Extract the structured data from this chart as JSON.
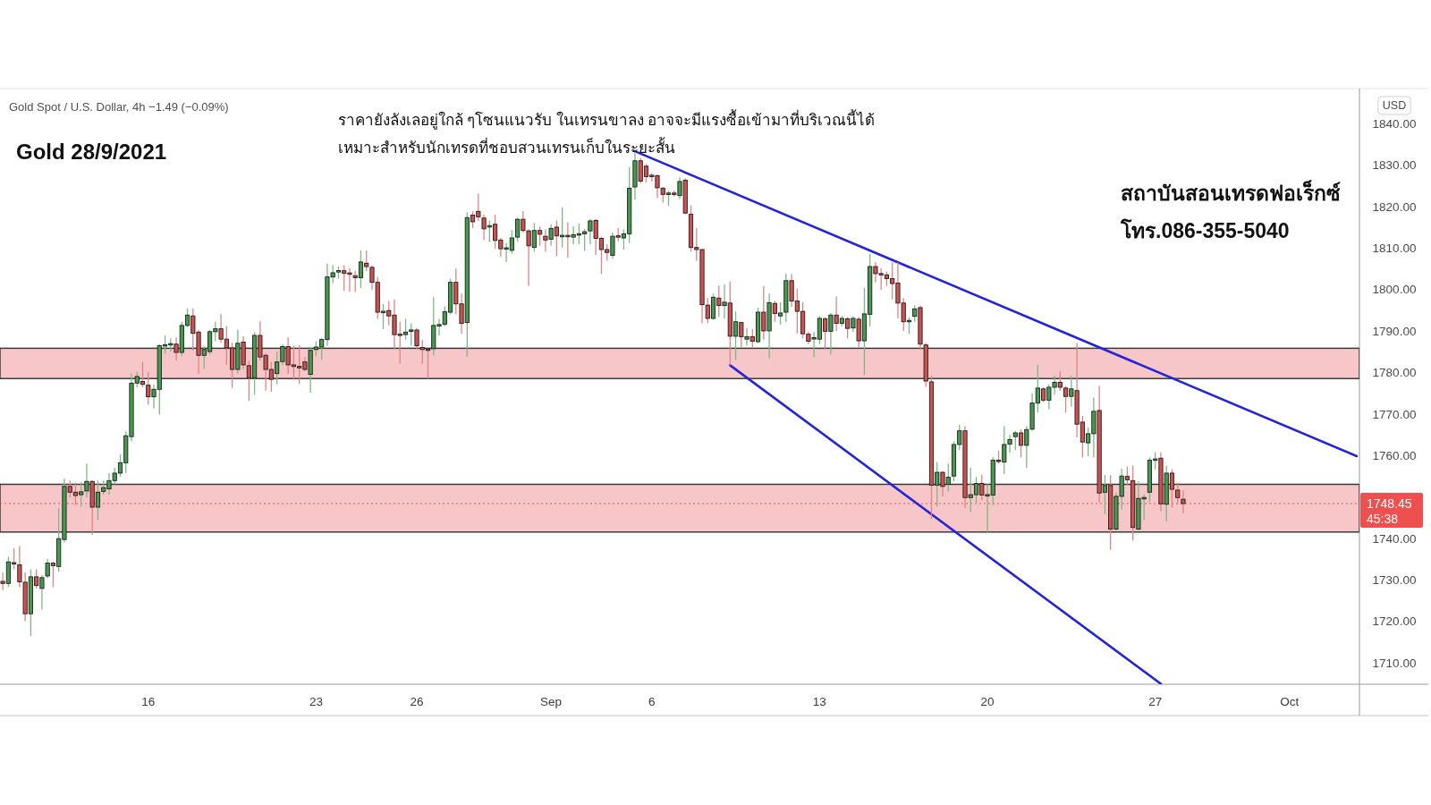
{
  "chart_data": {
    "type": "candlestick",
    "title": "Gold 28/9/2021",
    "subtitle": "Gold Spot / U.S. Dollar, 4h −1.49 (−0.09%)",
    "ylabel": "USD",
    "annotations": [
      "ราคายังลังเลอยู่ใกล้ ๆโซนแนวรับ ในเทรนขาลง อาจจะมีแรงซื้อเข้ามาที่บริเวณนี้ได้",
      "เหมาะสำหรับนักเทรดที่ชอบสวนเทรนเก็บในระยะสั้น",
      "สถาบันสอนเทรดฟอเร็กซ์",
      "โทร.086-355-5040",
      "45:38"
    ],
    "categories": [
      null,
      null,
      null,
      null,
      null,
      null,
      null,
      null,
      null,
      null,
      null,
      null,
      null,
      null,
      null,
      null,
      null,
      null,
      null,
      null,
      null,
      null,
      null,
      null,
      null,
      null,
      "16",
      null,
      null,
      null,
      null,
      null,
      null,
      null,
      null,
      null,
      null,
      null,
      null,
      null,
      null,
      null,
      null,
      null,
      null,
      null,
      null,
      null,
      null,
      null,
      null,
      null,
      null,
      null,
      null,
      null,
      "23",
      null,
      null,
      null,
      null,
      null,
      null,
      null,
      null,
      null,
      null,
      null,
      null,
      null,
      null,
      null,
      null,
      null,
      "26",
      null,
      null,
      null,
      null,
      null,
      null,
      null,
      null,
      null,
      null,
      null,
      null,
      null,
      null,
      null,
      null,
      null,
      null,
      null,
      null,
      null,
      null,
      null,
      "Sep",
      null,
      null,
      null,
      null,
      null,
      null,
      null,
      null,
      null,
      null,
      null,
      null,
      null,
      null,
      null,
      null,
      null,
      "6",
      null,
      null,
      null,
      null,
      null,
      null,
      null,
      null,
      null,
      null,
      null,
      null,
      null,
      null,
      null,
      null,
      null,
      null,
      null,
      null,
      null,
      null,
      null,
      null,
      null,
      null,
      null,
      null,
      null,
      "13",
      null,
      null,
      null,
      null,
      null,
      null,
      null,
      null,
      null,
      null,
      null,
      null,
      null,
      null,
      null,
      null,
      null,
      null,
      null,
      null,
      null,
      null,
      null,
      null,
      null,
      null,
      null,
      null,
      null,
      "20",
      null,
      null,
      null,
      null,
      null,
      null,
      null,
      null,
      null,
      null,
      null,
      null,
      null,
      null,
      null,
      null,
      null,
      null,
      null,
      null,
      null,
      null,
      null,
      null,
      null,
      null,
      null,
      null,
      null,
      "27",
      null,
      null,
      null,
      null,
      null,
      null,
      null,
      null,
      null,
      null,
      null,
      null,
      null,
      null,
      null,
      null,
      null,
      null,
      null,
      null,
      null,
      null,
      null,
      "Oct",
      null,
      null,
      null,
      null,
      null,
      null,
      null,
      null,
      null,
      null,
      null,
      null
    ],
    "ylim": [
      1704.9,
      1848.3
    ],
    "yticks": [
      {
        "value": 1710,
        "label": "1710.00"
      },
      {
        "value": 1720,
        "label": "1720.00"
      },
      {
        "value": 1730,
        "label": "1730.00"
      },
      {
        "value": 1740,
        "label": "1740.00"
      },
      {
        "value": 1760,
        "label": "1760.00"
      },
      {
        "value": 1770,
        "label": "1770.00"
      },
      {
        "value": 1780,
        "label": "1780.00"
      },
      {
        "value": 1790,
        "label": "1790.00"
      },
      {
        "value": 1800,
        "label": "1800.00"
      },
      {
        "value": 1810,
        "label": "1810.00"
      },
      {
        "value": 1820,
        "label": "1820.00"
      },
      {
        "value": 1830,
        "label": "1830.00"
      },
      {
        "value": 1840,
        "label": "1840.00"
      }
    ],
    "bands": [
      {
        "axis": "y",
        "from": 1778.6,
        "to": 1785.9,
        "color": "#f6c6c8"
      },
      {
        "axis": "y",
        "from": 1741.6,
        "to": 1753.1,
        "color": "#f6c6c8"
      }
    ],
    "ref_lines": [
      {
        "axis": "y",
        "value": 1748.45,
        "label": "1748.45",
        "color": "#ee4f4f",
        "line_style": "dotted"
      }
    ],
    "series": [
      {
        "type": "line",
        "color": "#2424d8",
        "values": [
          null,
          null,
          null,
          null,
          null,
          null,
          null,
          null,
          null,
          null,
          null,
          null,
          null,
          null,
          null,
          null,
          null,
          null,
          null,
          null,
          null,
          null,
          null,
          null,
          null,
          null,
          null,
          null,
          null,
          null,
          null,
          null,
          null,
          null,
          null,
          null,
          null,
          null,
          null,
          null,
          null,
          null,
          null,
          null,
          null,
          null,
          null,
          null,
          null,
          null,
          null,
          null,
          null,
          null,
          null,
          null,
          null,
          null,
          null,
          null,
          null,
          null,
          null,
          null,
          null,
          null,
          null,
          null,
          null,
          null,
          null,
          null,
          null,
          null,
          null,
          null,
          null,
          null,
          null,
          null,
          null,
          null,
          null,
          null,
          null,
          null,
          null,
          null,
          null,
          null,
          null,
          null,
          null,
          null,
          null,
          null,
          null,
          null,
          null,
          null,
          null,
          null,
          null,
          null,
          null,
          null,
          null,
          null,
          null,
          null,
          null,
          null,
          null,
          1833.4,
          null,
          null,
          null,
          null,
          null,
          null,
          null,
          null,
          null,
          null,
          null,
          null,
          null,
          null,
          null,
          null,
          null,
          null,
          null,
          null,
          null,
          null,
          null,
          null,
          null,
          null,
          null,
          null,
          null,
          null,
          null,
          null,
          null,
          null,
          null,
          null,
          null,
          null,
          null,
          null,
          null,
          null,
          null,
          null,
          null,
          null,
          null,
          null,
          null,
          null,
          null,
          null,
          null,
          null,
          null,
          null,
          null,
          null,
          null,
          null,
          null,
          null,
          null,
          null,
          null,
          null,
          null,
          null,
          null,
          null,
          null,
          null,
          null,
          null,
          null,
          null,
          null,
          null,
          null,
          null,
          null,
          null,
          null,
          null,
          null,
          null,
          null,
          null,
          null,
          null,
          null,
          null,
          null,
          null,
          null,
          null,
          null,
          null,
          null,
          null,
          null,
          null,
          null,
          null,
          null,
          null,
          null,
          null,
          null,
          null,
          null,
          null,
          null,
          null,
          null,
          null,
          null,
          null,
          null,
          null,
          null,
          null,
          null,
          null,
          null,
          null,
          null,
          null,
          1759.9
        ]
      },
      {
        "type": "line",
        "color": "#2424d8",
        "values": [
          null,
          null,
          null,
          null,
          null,
          null,
          null,
          null,
          null,
          null,
          null,
          null,
          null,
          null,
          null,
          null,
          null,
          null,
          null,
          null,
          null,
          null,
          null,
          null,
          null,
          null,
          null,
          null,
          null,
          null,
          null,
          null,
          null,
          null,
          null,
          null,
          null,
          null,
          null,
          null,
          null,
          null,
          null,
          null,
          null,
          null,
          null,
          null,
          null,
          null,
          null,
          null,
          null,
          null,
          null,
          null,
          null,
          null,
          null,
          null,
          null,
          null,
          null,
          null,
          null,
          null,
          null,
          null,
          null,
          null,
          null,
          null,
          null,
          null,
          null,
          null,
          null,
          null,
          null,
          null,
          null,
          null,
          null,
          null,
          null,
          null,
          null,
          null,
          null,
          null,
          null,
          null,
          null,
          null,
          null,
          null,
          null,
          null,
          null,
          null,
          null,
          null,
          null,
          null,
          null,
          null,
          null,
          null,
          null,
          null,
          null,
          null,
          null,
          null,
          null,
          null,
          null,
          null,
          null,
          null,
          null,
          null,
          null,
          null,
          null,
          null,
          null,
          null,
          null,
          null,
          1781.8,
          null,
          null,
          null,
          null,
          null,
          null,
          null,
          null,
          null,
          null,
          null,
          null,
          null,
          null,
          null,
          null,
          null,
          null,
          null,
          null,
          null,
          null,
          null,
          null,
          null,
          null,
          null,
          null,
          null,
          null,
          null,
          null,
          null,
          null,
          null,
          null,
          null,
          null,
          null,
          null,
          null,
          null,
          null,
          null,
          null,
          null,
          null,
          null,
          null,
          null,
          null,
          null,
          null,
          null,
          null,
          null,
          null,
          null,
          null,
          null,
          null,
          null,
          null,
          null,
          null,
          null,
          null,
          null,
          null,
          null,
          null,
          null,
          null,
          null,
          null,
          null,
          1705.0,
          null,
          null,
          null,
          null,
          null,
          null,
          null,
          null,
          null,
          null,
          null,
          null,
          null,
          null,
          null,
          null,
          null,
          null,
          null,
          null,
          null,
          null,
          null,
          null,
          null,
          null,
          null,
          null,
          null,
          null,
          null,
          null,
          null,
          null,
          null
        ]
      },
      {
        "color": "#459a4e",
        "ohlc": [
          null,
          [
            1729.2,
            1735.6,
            1728.3,
            1734.4
          ],
          null,
          null,
          null,
          [
            1721.9,
            1732.6,
            1716.5,
            1730.8
          ],
          null,
          [
            1728.0,
            1731.2,
            1722.9,
            1730.6
          ],
          [
            1731.0,
            1735.1,
            1730.5,
            1734.1
          ],
          null,
          [
            1733.3,
            1747.4,
            1732.0,
            1740.0
          ],
          [
            1739.8,
            1754.5,
            1739.1,
            1752.6
          ],
          null,
          null,
          [
            1750.6,
            1753.6,
            1747.7,
            1751.3
          ],
          [
            1751.5,
            1758.1,
            1749.9,
            1753.8
          ],
          null,
          [
            1747.6,
            1754.0,
            1744.5,
            1751.2
          ],
          [
            1751.4,
            1754.0,
            1750.6,
            1752.3
          ],
          [
            1752.0,
            1755.8,
            1750.6,
            1754.0
          ],
          [
            1754.0,
            1757.1,
            1753.1,
            1755.8
          ],
          [
            1755.8,
            1760.3,
            1754.9,
            1758.3
          ],
          [
            1758.3,
            1765.8,
            1755.8,
            1764.8
          ],
          [
            1764.6,
            1779.8,
            1763.5,
            1777.5
          ],
          [
            1777.5,
            1780.2,
            1776.5,
            1779.1
          ],
          null,
          null,
          [
            1774.2,
            1777.2,
            1771.4,
            1776.0
          ],
          [
            1776.0,
            1786.9,
            1769.9,
            1786.5
          ],
          [
            1786.5,
            1789.0,
            1784.5,
            1786.7
          ],
          [
            1786.7,
            1788.3,
            1785.1,
            1787.0
          ],
          null,
          [
            1784.9,
            1792.3,
            1784.0,
            1791.4
          ],
          [
            1791.4,
            1795.5,
            1791.0,
            1793.9
          ],
          null,
          null,
          [
            1784.2,
            1786.5,
            1780.9,
            1785.6
          ],
          [
            1785.1,
            1790.3,
            1784.4,
            1789.9
          ],
          [
            1789.9,
            1792.3,
            1787.6,
            1790.6
          ],
          null,
          null,
          null,
          [
            1780.8,
            1790.4,
            1779.7,
            1787.1
          ],
          null,
          null,
          [
            1778.8,
            1789.8,
            1774.7,
            1789.0
          ],
          null,
          null,
          null,
          [
            1779.8,
            1785.1,
            1777.2,
            1782.6
          ],
          [
            1782.7,
            1786.9,
            1781.9,
            1786.3
          ],
          null,
          null,
          null,
          null,
          [
            1779.6,
            1786.2,
            1775.2,
            1785.4
          ],
          [
            1785.6,
            1787.6,
            1784.0,
            1786.2
          ],
          [
            1786.2,
            1788.3,
            1783.1,
            1788.0
          ],
          [
            1788.0,
            1806.3,
            1786.5,
            1803.1
          ],
          [
            1803.1,
            1805.9,
            1801.6,
            1804.1
          ],
          [
            1804.4,
            1805.6,
            1802.7,
            1804.5
          ],
          null,
          null,
          null,
          [
            1802.9,
            1809.5,
            1800.4,
            1806.7
          ],
          null,
          null,
          null,
          [
            1794.6,
            1796.6,
            1790.5,
            1794.7
          ],
          null,
          null,
          null,
          [
            1789.2,
            1793.0,
            1788.0,
            1789.8
          ],
          [
            1790.1,
            1791.9,
            1786.5,
            1790.2
          ],
          null,
          null,
          null,
          [
            1785.8,
            1798.2,
            1784.2,
            1791.4
          ],
          [
            1791.4,
            1793.0,
            1789.0,
            1791.5
          ],
          [
            1791.7,
            1795.9,
            1791.2,
            1794.7
          ],
          [
            1794.6,
            1802.7,
            1794.1,
            1801.8
          ],
          null,
          null,
          [
            1792.1,
            1818.7,
            1783.8,
            1817.4
          ],
          null,
          null,
          null,
          [
            1815.2,
            1816.7,
            1811.5,
            1815.4
          ],
          null,
          null,
          [
            1809.9,
            1811.3,
            1806.7,
            1810.0
          ],
          [
            1809.5,
            1814.4,
            1808.7,
            1812.5
          ],
          [
            1812.7,
            1817.4,
            1811.7,
            1817.0
          ],
          null,
          null,
          [
            1810.2,
            1816.1,
            1809.2,
            1814.3
          ],
          null,
          null,
          [
            1812.2,
            1815.8,
            1810.6,
            1814.8
          ],
          null,
          [
            1812.9,
            1819.9,
            1810.2,
            1813.0
          ],
          null,
          [
            1812.7,
            1815.3,
            1811.0,
            1813.3
          ],
          [
            1813.3,
            1816.0,
            1811.0,
            1813.4
          ],
          [
            1813.5,
            1814.6,
            1809.4,
            1814.0
          ],
          [
            1814.2,
            1817.1,
            1811.0,
            1816.6
          ],
          null,
          null,
          null,
          [
            1808.3,
            1813.8,
            1807.5,
            1812.9
          ],
          null,
          [
            1812.5,
            1814.6,
            1809.7,
            1813.5
          ],
          [
            1813.5,
            1829.6,
            1811.3,
            1824.5
          ],
          [
            1824.8,
            1833.4,
            1821.7,
            1831.1
          ],
          null,
          null,
          null,
          null,
          null,
          [
            1823.1,
            1823.9,
            1820.2,
            1823.2
          ],
          null,
          [
            1822.7,
            1827.1,
            1821.9,
            1826.1
          ],
          null,
          null,
          null,
          null,
          null,
          [
            1793.1,
            1799.1,
            1792.8,
            1798.2
          ],
          null,
          [
            1796.2,
            1801.3,
            1793.1,
            1797.0
          ],
          null,
          [
            1788.8,
            1794.8,
            1783.1,
            1792.3
          ],
          null,
          [
            1788.1,
            1790.8,
            1786.5,
            1788.7
          ],
          null,
          [
            1787.5,
            1795.7,
            1787.1,
            1794.6
          ],
          null,
          [
            1790.1,
            1799.1,
            1783.5,
            1796.9
          ],
          null,
          [
            1793.7,
            1797.0,
            1791.6,
            1794.4
          ],
          [
            1794.6,
            1803.9,
            1792.3,
            1802.2
          ],
          null,
          null,
          null,
          null,
          [
            1788.2,
            1789.8,
            1783.7,
            1788.4
          ],
          [
            1788.1,
            1793.7,
            1786.9,
            1793.1
          ],
          null,
          [
            1790.0,
            1794.4,
            1784.4,
            1793.9
          ],
          null,
          [
            1791.9,
            1793.7,
            1791.2,
            1793.1
          ],
          null,
          [
            1790.8,
            1793.7,
            1789.8,
            1793.1
          ],
          null,
          [
            1787.7,
            1800.5,
            1779.5,
            1794.2
          ],
          [
            1794.1,
            1808.6,
            1791.2,
            1805.6
          ],
          null,
          null,
          null,
          null,
          null,
          null,
          [
            1792.4,
            1793.4,
            1789.4,
            1792.5
          ],
          [
            1793.6,
            1796.2,
            1792.3,
            1795.4
          ],
          null,
          null,
          null,
          [
            1752.9,
            1758.5,
            1747.7,
            1756.0
          ],
          null,
          [
            1753.1,
            1758.1,
            1751.3,
            1754.8
          ],
          [
            1755.1,
            1763.5,
            1753.8,
            1762.7
          ],
          [
            1762.7,
            1767.5,
            1761.4,
            1766.0
          ],
          null,
          [
            1749.9,
            1757.1,
            1746.4,
            1750.6
          ],
          [
            1750.6,
            1754.9,
            1748.4,
            1753.3
          ],
          null,
          [
            1750.4,
            1753.1,
            1741.6,
            1750.5
          ],
          [
            1750.5,
            1759.6,
            1748.1,
            1758.9
          ],
          null,
          [
            1758.5,
            1767.1,
            1755.6,
            1762.7
          ],
          [
            1762.8,
            1765.1,
            1760.7,
            1763.9
          ],
          [
            1764.6,
            1766.0,
            1761.4,
            1765.5
          ],
          null,
          [
            1762.5,
            1767.1,
            1757.1,
            1766.3
          ],
          [
            1766.4,
            1775.0,
            1766.0,
            1772.7
          ],
          [
            1772.7,
            1781.9,
            1770.4,
            1776.3
          ],
          null,
          [
            1773.4,
            1777.2,
            1771.2,
            1776.5
          ],
          [
            1776.5,
            1779.3,
            1774.7,
            1777.7
          ],
          null,
          null,
          [
            1774.3,
            1779.3,
            1771.8,
            1776.1
          ],
          null,
          null,
          [
            1763.1,
            1766.8,
            1759.9,
            1765.3
          ],
          [
            1765.3,
            1774.0,
            1759.6,
            1770.7
          ],
          null,
          [
            1751.2,
            1755.3,
            1745.9,
            1752.8
          ],
          null,
          [
            1742.3,
            1751.0,
            1742.0,
            1750.2
          ],
          [
            1750.2,
            1756.9,
            1747.0,
            1755.1
          ],
          null,
          null,
          [
            1742.3,
            1753.8,
            1742.0,
            1749.7
          ],
          [
            1749.7,
            1750.6,
            1744.5,
            1749.8
          ],
          [
            1751.2,
            1759.6,
            1748.8,
            1758.9
          ],
          [
            1759.0,
            1760.8,
            1756.7,
            1759.1
          ],
          null,
          [
            1748.3,
            1757.6,
            1744.1,
            1755.8
          ],
          null,
          null,
          null,
          null,
          null,
          null,
          null,
          null,
          null,
          null,
          null,
          null,
          null,
          null,
          null,
          null,
          null,
          null,
          null,
          null,
          null,
          null,
          null,
          null,
          null,
          null,
          null,
          null,
          null,
          null,
          null,
          null,
          null,
          null
        ]
      },
      {
        "color": "#d0504f",
        "ohlc": [
          [
            1729.7,
            1731.9,
            1727.6,
            1729.2
          ],
          null,
          [
            1734.2,
            1737.7,
            1732.6,
            1733.9
          ],
          [
            1733.7,
            1738.2,
            1728.3,
            1729.6
          ],
          [
            1729.5,
            1731.9,
            1720.1,
            1721.9
          ],
          null,
          [
            1730.8,
            1732.6,
            1728.0,
            1728.7
          ],
          null,
          null,
          [
            1734.1,
            1734.4,
            1728.3,
            1733.5
          ],
          null,
          null,
          [
            1752.6,
            1754.0,
            1749.9,
            1751.2
          ],
          [
            1751.2,
            1753.5,
            1748.1,
            1750.4
          ],
          null,
          null,
          [
            1753.8,
            1754.0,
            1740.9,
            1747.6
          ],
          null,
          null,
          null,
          null,
          null,
          null,
          null,
          null,
          [
            1777.9,
            1782.6,
            1776.5,
            1777.2
          ],
          [
            1777.0,
            1780.2,
            1772.3,
            1774.2
          ],
          null,
          null,
          null,
          null,
          [
            1786.9,
            1788.5,
            1782.9,
            1784.9
          ],
          null,
          null,
          [
            1793.7,
            1795.5,
            1785.4,
            1789.5
          ],
          [
            1789.8,
            1790.3,
            1779.7,
            1784.2
          ],
          null,
          null,
          null,
          [
            1790.6,
            1794.1,
            1787.2,
            1788.1
          ],
          [
            1788.1,
            1791.2,
            1781.9,
            1786.0
          ],
          [
            1786.0,
            1787.2,
            1776.3,
            1780.8
          ],
          null,
          [
            1787.4,
            1788.8,
            1780.8,
            1781.9
          ],
          [
            1781.7,
            1782.9,
            1773.2,
            1778.8
          ],
          null,
          [
            1789.0,
            1792.4,
            1782.9,
            1783.8
          ],
          [
            1784.2,
            1784.7,
            1775.7,
            1780.8
          ],
          [
            1780.8,
            1782.6,
            1775.4,
            1778.4
          ],
          null,
          null,
          [
            1786.3,
            1788.5,
            1779.7,
            1781.9
          ],
          [
            1781.9,
            1786.5,
            1778.3,
            1781.5
          ],
          [
            1781.4,
            1786.7,
            1777.3,
            1781.3
          ],
          [
            1782.6,
            1783.7,
            1780.4,
            1780.8
          ],
          null,
          null,
          null,
          null,
          null,
          null,
          [
            1804.6,
            1805.9,
            1799.8,
            1804.0
          ],
          [
            1804.0,
            1805.2,
            1799.5,
            1803.8
          ],
          [
            1803.4,
            1804.5,
            1799.5,
            1802.9
          ],
          null,
          [
            1806.4,
            1809.5,
            1804.5,
            1805.6
          ],
          [
            1805.4,
            1805.9,
            1800.0,
            1801.8
          ],
          [
            1801.8,
            1803.1,
            1793.0,
            1794.6
          ],
          null,
          [
            1795.0,
            1797.3,
            1791.4,
            1793.7
          ],
          [
            1793.9,
            1797.7,
            1785.8,
            1789.2
          ],
          [
            1789.2,
            1792.3,
            1782.2,
            1789.1
          ],
          null,
          null,
          [
            1790.3,
            1790.8,
            1785.8,
            1786.5
          ],
          [
            1786.1,
            1788.0,
            1782.2,
            1785.6
          ],
          [
            1785.6,
            1785.8,
            1778.6,
            1785.5
          ],
          null,
          null,
          null,
          null,
          [
            1801.8,
            1805.1,
            1794.1,
            1796.6
          ],
          [
            1796.6,
            1799.1,
            1789.4,
            1791.9
          ],
          null,
          [
            1818.0,
            1818.9,
            1814.9,
            1816.4
          ],
          [
            1818.9,
            1823.2,
            1816.6,
            1817.6
          ],
          [
            1817.3,
            1818.1,
            1812.0,
            1814.7
          ],
          null,
          [
            1815.8,
            1818.1,
            1809.9,
            1811.9
          ],
          [
            1812.0,
            1812.5,
            1807.9,
            1809.9
          ],
          null,
          null,
          null,
          [
            1817.0,
            1819.0,
            1813.8,
            1814.3
          ],
          [
            1814.2,
            1814.6,
            1800.9,
            1810.6
          ],
          null,
          [
            1814.3,
            1815.3,
            1810.6,
            1813.4
          ],
          [
            1812.9,
            1814.6,
            1809.2,
            1812.0
          ],
          null,
          [
            1815.1,
            1816.7,
            1808.1,
            1813.0
          ],
          null,
          [
            1813.0,
            1816.3,
            1807.7,
            1812.9
          ],
          null,
          null,
          null,
          null,
          [
            1816.7,
            1817.1,
            1808.4,
            1812.4
          ],
          [
            1812.4,
            1812.8,
            1803.8,
            1809.7
          ],
          [
            1809.7,
            1811.0,
            1807.0,
            1809.0
          ],
          null,
          [
            1812.9,
            1814.9,
            1811.7,
            1812.8
          ],
          null,
          null,
          null,
          [
            1831.1,
            1831.8,
            1825.7,
            1826.2
          ],
          [
            1829.8,
            1830.3,
            1825.8,
            1827.3
          ],
          [
            1827.5,
            1828.1,
            1826.1,
            1827.4
          ],
          [
            1827.5,
            1827.8,
            1822.1,
            1824.6
          ],
          [
            1824.5,
            1824.8,
            1821.0,
            1823.0
          ],
          null,
          [
            1823.2,
            1823.9,
            1822.5,
            1823.1
          ],
          null,
          [
            1826.4,
            1826.9,
            1818.2,
            1818.5
          ],
          [
            1818.2,
            1820.4,
            1809.2,
            1810.2
          ],
          [
            1810.2,
            1814.9,
            1807.0,
            1809.7
          ],
          [
            1809.7,
            1809.8,
            1791.9,
            1796.4
          ],
          [
            1796.3,
            1798.0,
            1791.9,
            1793.1
          ],
          null,
          [
            1798.0,
            1801.0,
            1793.4,
            1796.2
          ],
          null,
          [
            1796.8,
            1802.0,
            1781.8,
            1788.8
          ],
          null,
          [
            1792.1,
            1792.3,
            1786.2,
            1788.7
          ],
          null,
          [
            1788.7,
            1790.5,
            1786.2,
            1787.6
          ],
          null,
          [
            1794.6,
            1800.9,
            1788.0,
            1790.1
          ],
          null,
          [
            1796.7,
            1797.3,
            1792.3,
            1794.3
          ],
          null,
          null,
          [
            1802.2,
            1803.8,
            1795.9,
            1797.3
          ],
          [
            1797.3,
            1800.2,
            1789.5,
            1794.8
          ],
          [
            1794.8,
            1797.0,
            1788.3,
            1789.4
          ],
          [
            1789.3,
            1789.9,
            1786.9,
            1787.6
          ],
          null,
          null,
          [
            1793.0,
            1793.4,
            1785.8,
            1790.0
          ],
          null,
          [
            1793.9,
            1798.4,
            1790.1,
            1791.9
          ],
          null,
          [
            1793.0,
            1793.4,
            1788.3,
            1790.7
          ],
          null,
          [
            1792.9,
            1793.4,
            1786.2,
            1787.7
          ],
          null,
          null,
          [
            1805.6,
            1806.7,
            1801.8,
            1803.9
          ],
          [
            1803.8,
            1805.2,
            1800.0,
            1803.7
          ],
          [
            1803.6,
            1804.4,
            1800.9,
            1802.7
          ],
          [
            1802.7,
            1806.7,
            1797.7,
            1801.5
          ],
          [
            1801.6,
            1806.6,
            1793.1,
            1796.8
          ],
          [
            1796.8,
            1798.0,
            1790.1,
            1792.3
          ],
          null,
          null,
          [
            1795.7,
            1796.2,
            1785.5,
            1786.9
          ],
          [
            1786.7,
            1787.2,
            1776.6,
            1778.0
          ],
          [
            1777.8,
            1779.3,
            1744.8,
            1752.9
          ],
          null,
          [
            1756.0,
            1756.3,
            1750.2,
            1752.6
          ],
          null,
          null,
          null,
          [
            1766.0,
            1767.1,
            1747.4,
            1749.9
          ],
          null,
          null,
          [
            1753.3,
            1755.4,
            1749.2,
            1750.5
          ],
          null,
          null,
          [
            1758.9,
            1761.2,
            1758.1,
            1758.6
          ],
          null,
          null,
          null,
          [
            1765.5,
            1766.4,
            1759.6,
            1762.5
          ],
          null,
          null,
          null,
          [
            1776.1,
            1776.5,
            1772.9,
            1773.4
          ],
          null,
          null,
          [
            1777.7,
            1780.4,
            1775.7,
            1776.5
          ],
          [
            1776.3,
            1776.8,
            1770.4,
            1774.3
          ],
          null,
          [
            1775.7,
            1787.2,
            1764.4,
            1767.6
          ],
          [
            1768.1,
            1769.6,
            1759.6,
            1763.3
          ],
          null,
          null,
          [
            1770.9,
            1776.8,
            1748.8,
            1751.0
          ],
          null,
          [
            1752.8,
            1755.3,
            1737.3,
            1742.3
          ],
          null,
          null,
          [
            1755.0,
            1757.4,
            1752.8,
            1754.2
          ],
          [
            1754.0,
            1757.6,
            1739.5,
            1742.7
          ],
          null,
          null,
          null,
          null,
          [
            1759.4,
            1760.8,
            1746.6,
            1748.4
          ],
          null,
          [
            1755.8,
            1756.7,
            1747.4,
            1751.9
          ],
          [
            1751.7,
            1753.5,
            1748.4,
            1749.9
          ],
          [
            1749.5,
            1751.7,
            1746.1,
            1748.45
          ],
          null,
          null,
          null,
          null,
          null,
          null,
          null,
          null,
          null,
          null,
          null,
          null,
          null,
          null,
          null,
          null,
          null,
          null,
          null,
          null,
          null,
          null,
          null,
          null,
          null,
          null,
          null,
          null,
          null,
          null,
          null
        ]
      }
    ]
  }
}
